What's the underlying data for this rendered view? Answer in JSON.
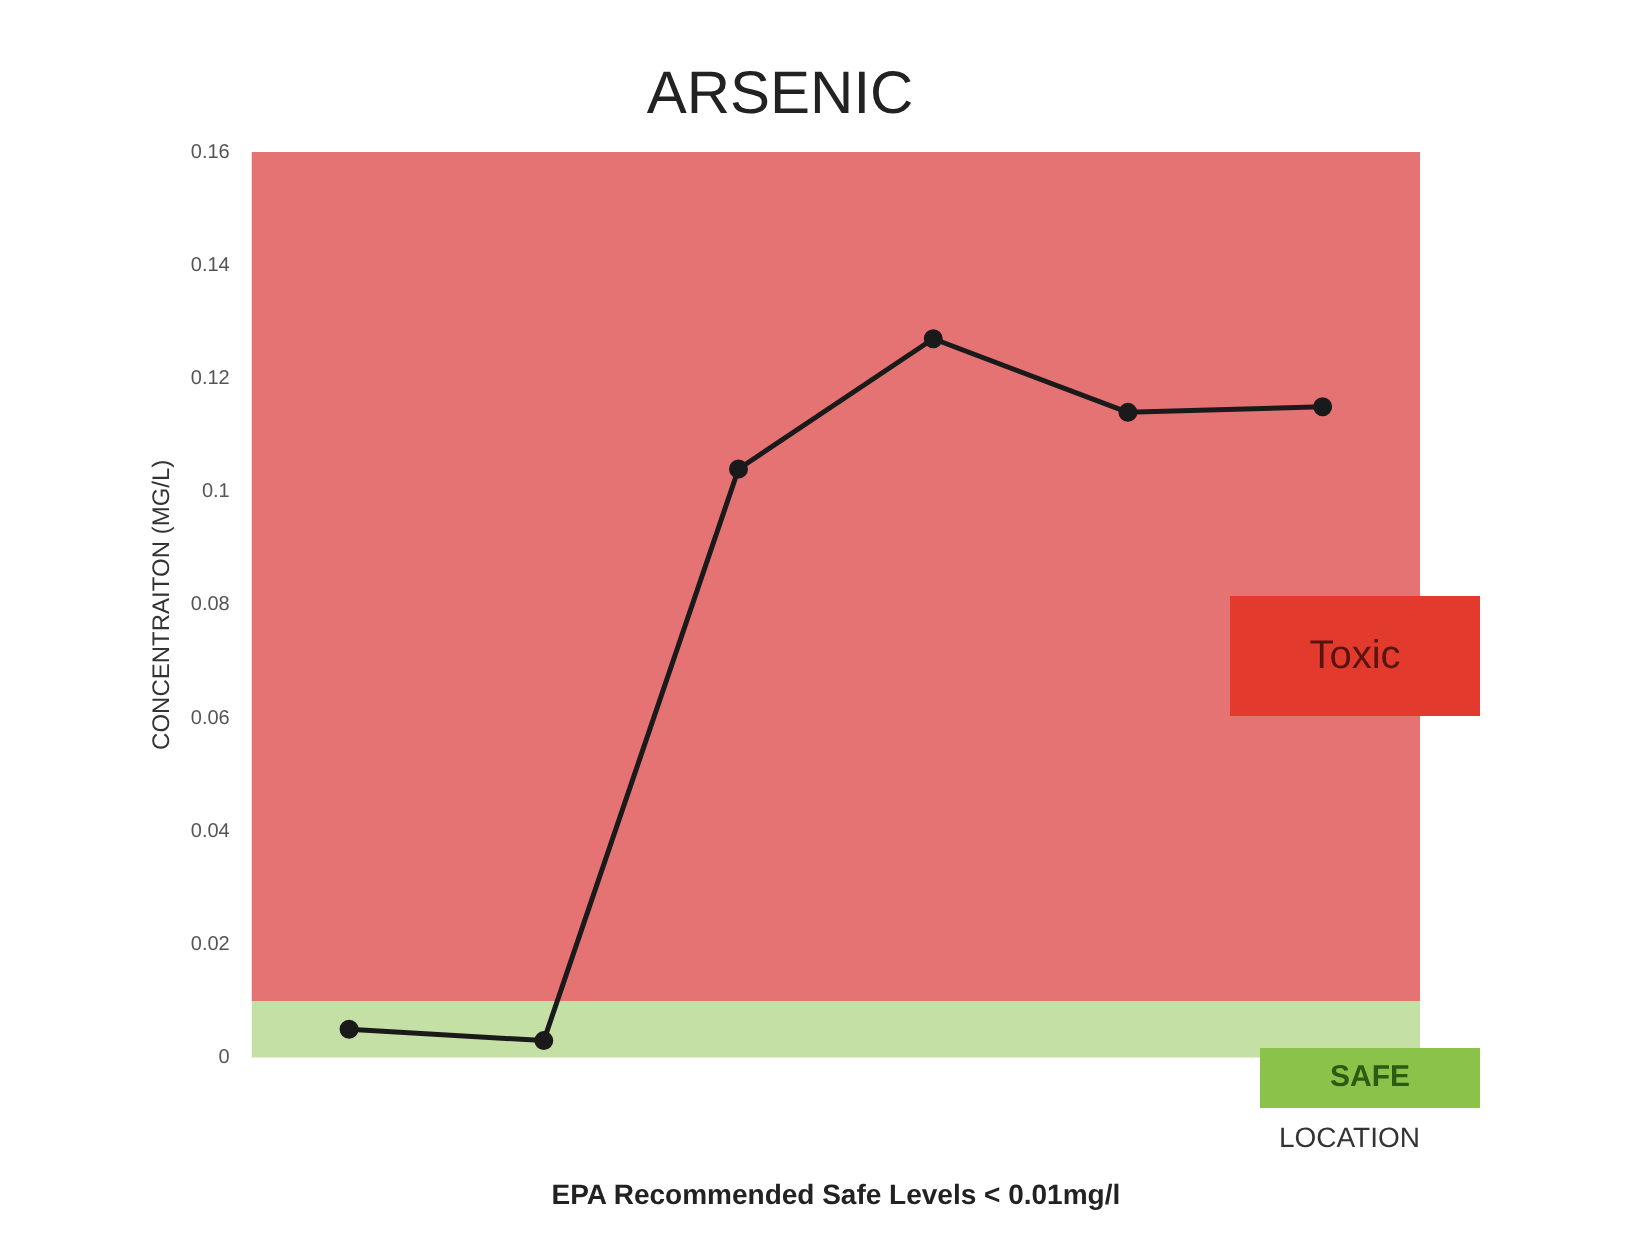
{
  "chart_data": {
    "type": "line",
    "title": "ARSENIC",
    "ylabel": "CONCENTRAITON (MG/L)",
    "xlabel": "LOCATION",
    "categories": [
      null,
      null,
      null,
      null,
      null,
      null
    ],
    "series": [
      {
        "color": "#1a1a1a",
        "values": [
          0.005,
          0.003,
          0.104,
          0.127,
          0.114,
          0.115
        ]
      }
    ],
    "ylim": [
      0,
      0.16
    ],
    "yticks": [
      0,
      0.02,
      0.04,
      0.06,
      0.08,
      {
        "value": 0.1,
        "label": "0.1"
      },
      0.12,
      0.14,
      0.16
    ],
    "bands": [
      {
        "axis": "y",
        "from": 0,
        "to": 0.01,
        "label": "SAFE",
        "color": "#c5e0a5"
      },
      {
        "axis": "y",
        "from": 0.01,
        "to": 0.16,
        "label": "Toxic",
        "color": "#e57373"
      }
    ],
    "annotations": [
      "EPA Recommended Safe Levels < 0.01mg/l"
    ],
    "marker": "circle",
    "grid": false,
    "legend": false
  }
}
